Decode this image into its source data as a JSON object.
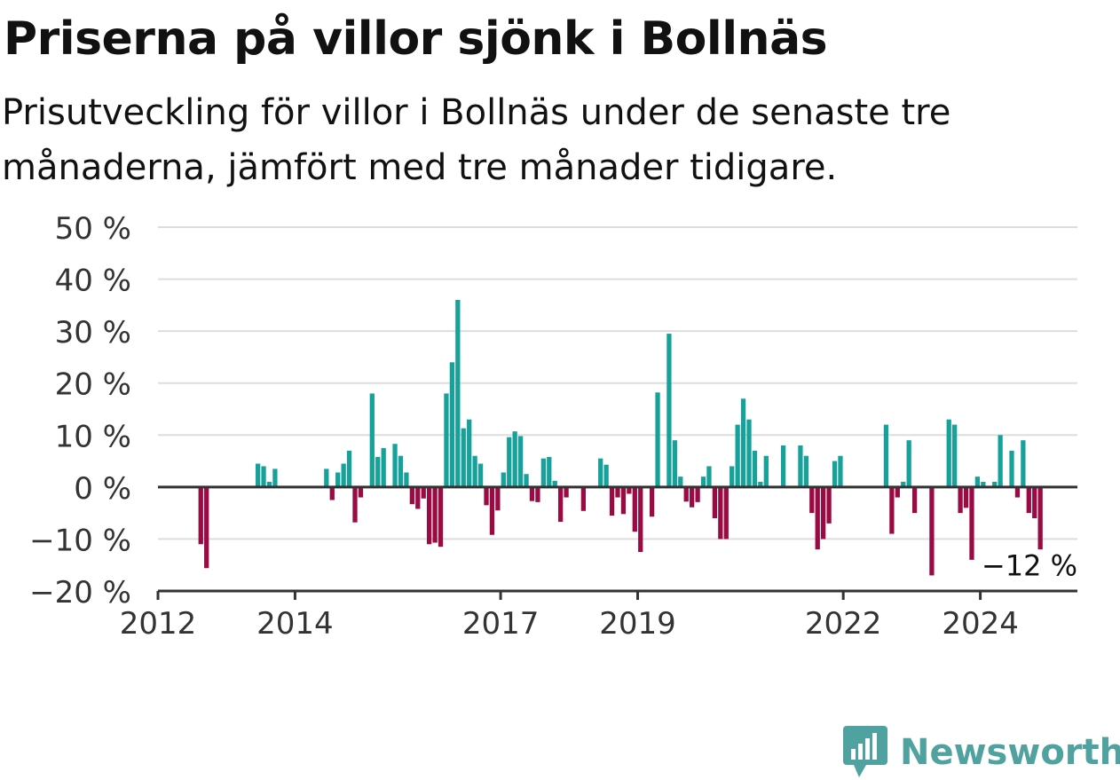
{
  "title": "Priserna på villor sjönk i Bollnäs",
  "subtitle": "Prisutveckling för villor i Bollnäs under de senaste tre månaderna, jämfört med tre månader tidigare.",
  "brand": {
    "name": "Newsworthy",
    "icon": "newsworthy-logo-icon"
  },
  "colors": {
    "positive": "#16a29a",
    "negative": "#9a0a43",
    "grid": "#dddddd",
    "axis": "#333333",
    "text": "#333333"
  },
  "chart_data": {
    "type": "bar",
    "ylim": [
      -20,
      50
    ],
    "yticks": [
      -20,
      -10,
      0,
      10,
      20,
      30,
      40,
      50
    ],
    "ytick_labels": [
      "−20 %",
      "−10 %",
      "0 %",
      "10 %",
      "20 %",
      "30 %",
      "40 %",
      "50 %"
    ],
    "xlim": [
      "2012-01",
      "2025-06"
    ],
    "xticks": [
      "2012-01",
      "2014-01",
      "2017-01",
      "2019-01",
      "2022-01",
      "2024-01"
    ],
    "xtick_labels": [
      "2012",
      "2014",
      "2017",
      "2019",
      "2022",
      "2024"
    ],
    "grid": true,
    "end_label": "−12 %",
    "points": [
      {
        "x": "2012-08",
        "y": -11
      },
      {
        "x": "2012-09",
        "y": -15.6
      },
      {
        "x": "2013-06",
        "y": 4.5
      },
      {
        "x": "2013-07",
        "y": 4
      },
      {
        "x": "2013-08",
        "y": 1
      },
      {
        "x": "2013-09",
        "y": 3.5
      },
      {
        "x": "2014-06",
        "y": 3.5
      },
      {
        "x": "2014-07",
        "y": -2.5
      },
      {
        "x": "2014-08",
        "y": 2.8
      },
      {
        "x": "2014-09",
        "y": 4.5
      },
      {
        "x": "2014-10",
        "y": 7
      },
      {
        "x": "2014-11",
        "y": -6.8
      },
      {
        "x": "2014-12",
        "y": -2
      },
      {
        "x": "2015-02",
        "y": 18
      },
      {
        "x": "2015-03",
        "y": 5.8
      },
      {
        "x": "2015-04",
        "y": 7.5
      },
      {
        "x": "2015-06",
        "y": 8.3
      },
      {
        "x": "2015-07",
        "y": 6
      },
      {
        "x": "2015-08",
        "y": 2.8
      },
      {
        "x": "2015-09",
        "y": -3.3
      },
      {
        "x": "2015-10",
        "y": -4.2
      },
      {
        "x": "2015-11",
        "y": -2.2
      },
      {
        "x": "2015-12",
        "y": -11
      },
      {
        "x": "2016-01",
        "y": -10.7
      },
      {
        "x": "2016-02",
        "y": -11.5
      },
      {
        "x": "2016-03",
        "y": 18
      },
      {
        "x": "2016-04",
        "y": 24
      },
      {
        "x": "2016-05",
        "y": 36
      },
      {
        "x": "2016-06",
        "y": 11.3
      },
      {
        "x": "2016-07",
        "y": 13
      },
      {
        "x": "2016-08",
        "y": 6
      },
      {
        "x": "2016-09",
        "y": 4.5
      },
      {
        "x": "2016-10",
        "y": -3.5
      },
      {
        "x": "2016-11",
        "y": -9.2
      },
      {
        "x": "2016-12",
        "y": -4.5
      },
      {
        "x": "2017-01",
        "y": 2.8
      },
      {
        "x": "2017-02",
        "y": 9.6
      },
      {
        "x": "2017-03",
        "y": 10.7
      },
      {
        "x": "2017-04",
        "y": 9.8
      },
      {
        "x": "2017-05",
        "y": 2.5
      },
      {
        "x": "2017-06",
        "y": -2.7
      },
      {
        "x": "2017-07",
        "y": -2.9
      },
      {
        "x": "2017-08",
        "y": 5.5
      },
      {
        "x": "2017-09",
        "y": 5.8
      },
      {
        "x": "2017-10",
        "y": 1.2
      },
      {
        "x": "2017-11",
        "y": -6.7
      },
      {
        "x": "2017-12",
        "y": -2
      },
      {
        "x": "2018-03",
        "y": -4.6
      },
      {
        "x": "2018-06",
        "y": 5.5
      },
      {
        "x": "2018-07",
        "y": 4.3
      },
      {
        "x": "2018-08",
        "y": -5.5
      },
      {
        "x": "2018-09",
        "y": -2
      },
      {
        "x": "2018-10",
        "y": -5.2
      },
      {
        "x": "2018-11",
        "y": -1.3
      },
      {
        "x": "2018-12",
        "y": -8.6
      },
      {
        "x": "2019-01",
        "y": -12.5
      },
      {
        "x": "2019-03",
        "y": -5.7
      },
      {
        "x": "2019-04",
        "y": 18.2
      },
      {
        "x": "2019-06",
        "y": 29.5
      },
      {
        "x": "2019-07",
        "y": 9
      },
      {
        "x": "2019-08",
        "y": 2
      },
      {
        "x": "2019-09",
        "y": -2.8
      },
      {
        "x": "2019-10",
        "y": -3.9
      },
      {
        "x": "2019-11",
        "y": -2.9
      },
      {
        "x": "2019-12",
        "y": 2
      },
      {
        "x": "2020-01",
        "y": 4
      },
      {
        "x": "2020-02",
        "y": -6
      },
      {
        "x": "2020-03",
        "y": -10
      },
      {
        "x": "2020-04",
        "y": -10
      },
      {
        "x": "2020-05",
        "y": 4
      },
      {
        "x": "2020-06",
        "y": 12
      },
      {
        "x": "2020-07",
        "y": 17
      },
      {
        "x": "2020-08",
        "y": 13
      },
      {
        "x": "2020-09",
        "y": 7
      },
      {
        "x": "2020-10",
        "y": 1
      },
      {
        "x": "2020-11",
        "y": 6
      },
      {
        "x": "2021-02",
        "y": 8
      },
      {
        "x": "2021-05",
        "y": 8
      },
      {
        "x": "2021-06",
        "y": 6
      },
      {
        "x": "2021-07",
        "y": -5
      },
      {
        "x": "2021-08",
        "y": -12
      },
      {
        "x": "2021-09",
        "y": -10
      },
      {
        "x": "2021-10",
        "y": -7
      },
      {
        "x": "2021-11",
        "y": 5
      },
      {
        "x": "2021-12",
        "y": 6
      },
      {
        "x": "2022-08",
        "y": 12
      },
      {
        "x": "2022-09",
        "y": -9
      },
      {
        "x": "2022-10",
        "y": -2
      },
      {
        "x": "2022-11",
        "y": 1
      },
      {
        "x": "2022-12",
        "y": 9
      },
      {
        "x": "2023-01",
        "y": -5
      },
      {
        "x": "2023-04",
        "y": -17
      },
      {
        "x": "2023-07",
        "y": 13
      },
      {
        "x": "2023-08",
        "y": 12
      },
      {
        "x": "2023-09",
        "y": -5
      },
      {
        "x": "2023-10",
        "y": -4
      },
      {
        "x": "2023-11",
        "y": -14
      },
      {
        "x": "2023-12",
        "y": 2
      },
      {
        "x": "2024-01",
        "y": 1
      },
      {
        "x": "2024-03",
        "y": 1
      },
      {
        "x": "2024-04",
        "y": 10
      },
      {
        "x": "2024-06",
        "y": 7
      },
      {
        "x": "2024-07",
        "y": -2
      },
      {
        "x": "2024-08",
        "y": 9
      },
      {
        "x": "2024-09",
        "y": -5
      },
      {
        "x": "2024-10",
        "y": -6
      },
      {
        "x": "2024-11",
        "y": -12
      }
    ]
  }
}
